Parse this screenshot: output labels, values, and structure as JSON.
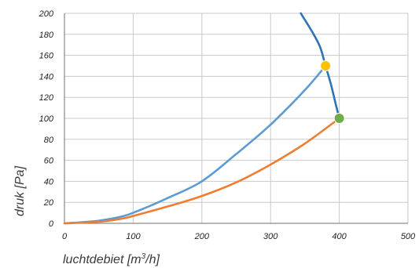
{
  "chart_data": {
    "type": "line",
    "xlabel_main": "luchtdebiet [m",
    "xlabel_sup": "3",
    "xlabel_tail": "/h]",
    "ylabel": "druk [Pa]",
    "xlim": [
      0,
      500
    ],
    "ylim": [
      0,
      200
    ],
    "x_ticks": [
      "0",
      "100",
      "200",
      "300",
      "400",
      "500"
    ],
    "y_ticks": [
      "0",
      "20",
      "40",
      "60",
      "80",
      "100",
      "120",
      "140",
      "160",
      "180",
      "200"
    ],
    "grid": true,
    "series": [
      {
        "color": "#5b9bd5",
        "points": [
          [
            0,
            0
          ],
          [
            20,
            0.8
          ],
          [
            50,
            2.5
          ],
          [
            80,
            6
          ],
          [
            100,
            10
          ],
          [
            150,
            24
          ],
          [
            200,
            40
          ],
          [
            250,
            66
          ],
          [
            300,
            94
          ],
          [
            350,
            127
          ],
          [
            380,
            150
          ]
        ]
      },
      {
        "color": "#ed7d31",
        "points": [
          [
            0,
            0
          ],
          [
            50,
            1.5
          ],
          [
            80,
            4
          ],
          [
            100,
            7
          ],
          [
            150,
            16
          ],
          [
            200,
            26
          ],
          [
            250,
            39
          ],
          [
            300,
            56
          ],
          [
            350,
            76
          ],
          [
            400,
            100
          ]
        ]
      },
      {
        "color": "#2e75b6",
        "points": [
          [
            344,
            200
          ],
          [
            360,
            183
          ],
          [
            372,
            168
          ],
          [
            380,
            150
          ],
          [
            388,
            132
          ],
          [
            395,
            113
          ],
          [
            400,
            100
          ]
        ]
      }
    ],
    "markers": [
      {
        "x": 380,
        "y": 150,
        "color": "#ffc000"
      },
      {
        "x": 400,
        "y": 100,
        "color": "#70ad47"
      }
    ]
  }
}
